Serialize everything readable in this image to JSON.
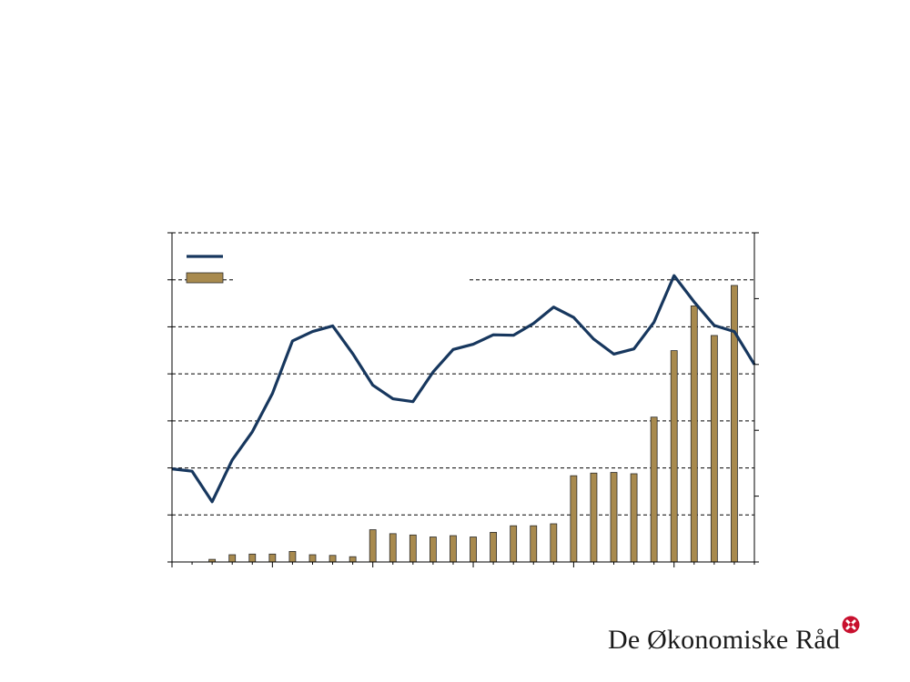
{
  "brand": {
    "name": "De Økonomiske Råd",
    "mark_color": "#c8102e"
  },
  "chart_data": {
    "type": "bar+line",
    "title": "",
    "xlabel": "",
    "ylabel_left": "",
    "ylabel_right": "",
    "left_axis": {
      "ylim": [
        0,
        7
      ],
      "ticks": [
        0,
        1,
        2,
        3,
        4,
        5,
        6,
        7
      ]
    },
    "right_axis": {
      "ylim": [
        0,
        5
      ],
      "ticks": [
        0,
        1,
        2,
        3,
        4,
        5
      ]
    },
    "grid": true,
    "legend_placement": "top-left",
    "colors": {
      "line": "#17375e",
      "bar": "#a88a4e",
      "bar_edge": "#2b2b2b",
      "grid": "#000000"
    },
    "series": [
      {
        "kind": "line",
        "axis": "left",
        "values": [
          1.98,
          1.93,
          1.28,
          2.17,
          2.77,
          3.58,
          4.7,
          4.9,
          5.02,
          4.43,
          3.76,
          3.47,
          3.41,
          4.04,
          4.52,
          4.63,
          4.83,
          4.82,
          5.07,
          5.42,
          5.2,
          4.74,
          4.42,
          4.53,
          5.1,
          6.09,
          5.53,
          5.03,
          4.9,
          4.2
        ]
      },
      {
        "kind": "bar",
        "axis": "right",
        "values": [
          0.0,
          0.0,
          0.04,
          0.11,
          0.12,
          0.12,
          0.16,
          0.11,
          0.1,
          0.08,
          0.49,
          0.43,
          0.41,
          0.38,
          0.4,
          0.38,
          0.45,
          0.55,
          0.55,
          0.58,
          1.31,
          1.35,
          1.36,
          1.34,
          2.2,
          3.21,
          3.89,
          3.44,
          4.2,
          0.0
        ]
      }
    ]
  }
}
